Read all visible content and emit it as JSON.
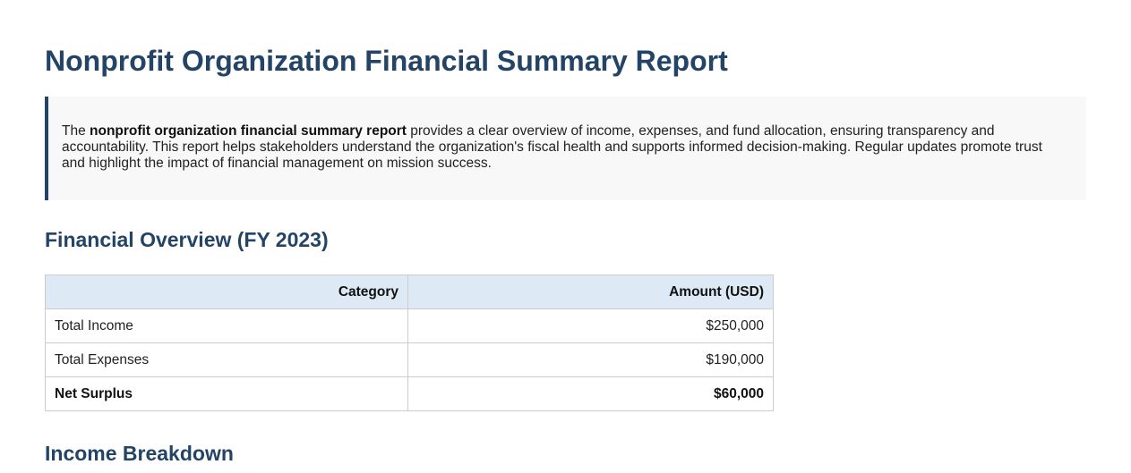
{
  "page_title": "Nonprofit Organization Financial Summary Report",
  "intro": {
    "lead": "The ",
    "bold": "nonprofit organization financial summary report",
    "rest": " provides a clear overview of income, expenses, and fund allocation, ensuring transparency and accountability. This report helps stakeholders understand the organization's fiscal health and supports informed decision-making. Regular updates promote trust and highlight the impact of financial management on mission success."
  },
  "overview": {
    "heading": "Financial Overview (FY 2023)",
    "columns": [
      "Category",
      "Amount (USD)"
    ],
    "rows": [
      {
        "category": "Total Income",
        "amount": "$250,000"
      },
      {
        "category": "Total Expenses",
        "amount": "$190,000"
      },
      {
        "category": "Net Surplus",
        "amount": "$60,000"
      }
    ]
  },
  "income_heading": "Income Breakdown",
  "colors": {
    "heading": "#234466",
    "table_header_bg": "#dde9f5",
    "intro_bg": "#f8f8f8"
  }
}
